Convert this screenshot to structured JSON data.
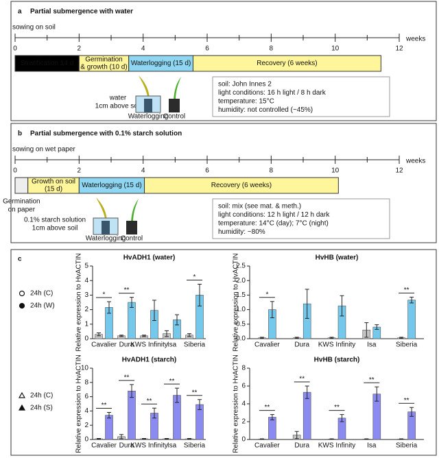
{
  "panels": [
    {
      "letter": "a",
      "title": "Partial submergence with water",
      "sowing": "sowing on soil",
      "unit": "weeks",
      "xlim": [
        0,
        12
      ],
      "ticks": [
        0,
        2,
        4,
        6,
        8,
        10,
        12
      ],
      "minor_ticks": [
        1,
        3,
        5,
        7,
        9,
        11
      ],
      "phases": [
        {
          "lines": [
            "Stratification 14 d"
          ],
          "start": 0,
          "end": 2,
          "color": "#000000",
          "text_color": "#ffffff"
        },
        {
          "lines": [
            "Germination",
            "& growth (10 d)"
          ],
          "start": 2,
          "end": 3.55,
          "color": "#fff59a",
          "text_color": "#111111"
        },
        {
          "lines": [
            "Waterlogging (15 d)"
          ],
          "start": 3.55,
          "end": 5.56,
          "color": "#8fd6f2",
          "text_color": "#111111"
        },
        {
          "lines": [
            "Recovery (6 weeks)"
          ],
          "start": 5.56,
          "end": 11.43,
          "color": "#fff59a",
          "text_color": "#111111"
        }
      ],
      "info": [
        "soil: John Innes 2",
        "light conditions: 16 h light / 8 h dark",
        "temperature: 15°C",
        "humidity: not controlled (~45%)"
      ],
      "treatment": [
        "water",
        "1cm above soil"
      ],
      "icon_labels": [
        "Waterlogging",
        "Control"
      ]
    },
    {
      "letter": "b",
      "title": "Partial submergence with 0.1% starch solution",
      "sowing": "sowing on wet paper",
      "unit": "weeks",
      "xlim": [
        0,
        12
      ],
      "ticks": [
        0,
        2,
        4,
        6,
        8,
        10,
        12
      ],
      "minor_ticks": [
        1,
        3,
        5,
        7,
        9,
        11
      ],
      "phases": [
        {
          "lines": [
            "Germination",
            "on paper"
          ],
          "start": 0,
          "end": 0.4,
          "color": "#eeeeee",
          "text_color": "#111111",
          "label_below": true
        },
        {
          "lines": [
            "Growth on soil",
            "(15 d)"
          ],
          "start": 0.4,
          "end": 2,
          "color": "#fff59a",
          "text_color": "#111111"
        },
        {
          "lines": [
            "Waterlogging (15 d)"
          ],
          "start": 2,
          "end": 4.04,
          "color": "#8fd6f2",
          "text_color": "#111111"
        },
        {
          "lines": [
            "Recovery (6 weeks)"
          ],
          "start": 4.04,
          "end": 10.1,
          "color": "#fff59a",
          "text_color": "#111111"
        }
      ],
      "info": [
        "soil: mix (see mat. & meth.)",
        "light conditions: 12 h light / 12 h dark",
        "temperature: 14°C (day); 7°C (night)",
        "humidity: ~80%"
      ],
      "treatment": [
        "0.1% starch solution",
        "1cm above soil"
      ],
      "icon_labels": [
        "Waterlogging",
        "Control"
      ]
    }
  ],
  "panel_c_letter": "c",
  "chart_data": [
    {
      "type": "bar",
      "title": "HvADH1 (water)",
      "ylabel": "Relative expression to HvACTIN",
      "legend": "left",
      "categories": [
        "Cavalier",
        "Dura",
        "KWS Infinity",
        "Isa",
        "Siberia"
      ],
      "ylim": [
        0,
        5
      ],
      "yticks": [
        0,
        1,
        2,
        3,
        4,
        5
      ],
      "series": [
        {
          "name": "24h (C)",
          "color": "#c4c4c4",
          "marker": "circle",
          "marker_fill": false,
          "values": [
            0.3,
            0.2,
            0.2,
            0.35,
            0.25
          ],
          "errors": [
            0.1,
            0.05,
            0.05,
            0.2,
            0.1
          ]
        },
        {
          "name": "24h (W)",
          "color": "#74c8ec",
          "marker": "circle",
          "marker_fill": true,
          "values": [
            2.15,
            2.5,
            1.95,
            1.3,
            3.0
          ],
          "errors": [
            0.4,
            0.35,
            0.7,
            0.35,
            0.75
          ]
        }
      ],
      "significance": [
        "*",
        "**",
        null,
        null,
        "*"
      ]
    },
    {
      "type": "bar",
      "title": "HvHB (water)",
      "ylabel": "Relative expression to HvACTIN",
      "categories": [
        "Cavalier",
        "Dura",
        "KWS Infinity",
        "Isa",
        "Siberia"
      ],
      "ylim": [
        0,
        2.5
      ],
      "yticks": [
        {
          "value": 0,
          "label": "0.0"
        },
        0.5,
        {
          "value": 1,
          "label": "1.0"
        },
        1.5,
        {
          "value": 2,
          "label": "2.0"
        },
        2.5
      ],
      "series": [
        {
          "color": "#c4c4c4",
          "values": [
            0.03,
            0.03,
            0.03,
            0.3,
            0.03
          ],
          "errors": [
            0.02,
            0.02,
            0.02,
            0.25,
            0.02
          ]
        },
        {
          "color": "#74c8ec",
          "values": [
            1.0,
            1.2,
            1.13,
            0.4,
            1.33
          ],
          "errors": [
            0.28,
            0.5,
            0.35,
            0.08,
            0.1
          ]
        }
      ],
      "significance": [
        "*",
        null,
        null,
        null,
        "**"
      ]
    },
    {
      "type": "bar",
      "title": "HvADH1 (starch)",
      "ylabel": "Relative expression to HvACTIN",
      "legend": "left",
      "categories": [
        "Cavalier",
        "Dura",
        "KWS Infinity",
        "Isa",
        "Siberia"
      ],
      "ylim": [
        0,
        10
      ],
      "yticks": [
        0,
        2,
        4,
        6,
        8,
        10
      ],
      "series": [
        {
          "name": "24h (C)",
          "color": "#c4c4c4",
          "marker": "triangle",
          "marker_fill": false,
          "values": [
            0.1,
            0.4,
            0.1,
            0.1,
            0.1
          ],
          "errors": [
            0.05,
            0.3,
            0.05,
            0.05,
            0.05
          ]
        },
        {
          "name": "24h (S)",
          "color": "#8a8af0",
          "marker": "triangle",
          "marker_fill": true,
          "values": [
            3.4,
            6.8,
            3.7,
            6.2,
            4.9
          ],
          "errors": [
            0.4,
            0.9,
            0.7,
            1.0,
            0.7
          ]
        }
      ],
      "significance": [
        "**",
        "**",
        "**",
        "**",
        "**"
      ]
    },
    {
      "type": "bar",
      "title": "HvHB (starch)",
      "ylabel": "Relative expression to HvACTIN",
      "categories": [
        "Cavalier",
        "Dura",
        "KWS Infinity",
        "Isa",
        "Siberia"
      ],
      "ylim": [
        0,
        8
      ],
      "yticks": [
        0,
        2,
        4,
        6,
        8
      ],
      "series": [
        {
          "color": "#c4c4c4",
          "values": [
            0.05,
            0.5,
            0.05,
            0.05,
            0.05
          ],
          "errors": [
            0.03,
            0.4,
            0.03,
            0.03,
            0.03
          ]
        },
        {
          "color": "#8a8af0",
          "values": [
            2.5,
            5.3,
            2.4,
            5.1,
            3.1
          ],
          "errors": [
            0.3,
            0.7,
            0.4,
            0.8,
            0.5
          ]
        }
      ],
      "significance": [
        "**",
        "**",
        "**",
        "**",
        "**"
      ]
    }
  ]
}
